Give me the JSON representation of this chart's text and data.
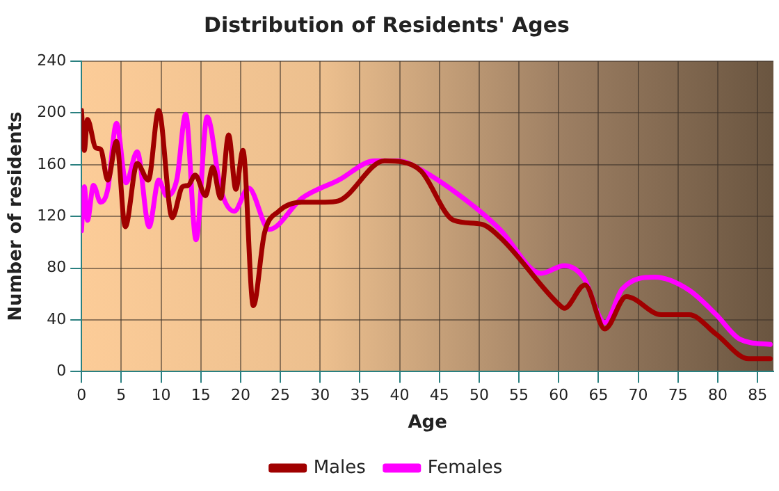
{
  "chart_data": {
    "type": "line",
    "title": "Distribution of Residents' Ages",
    "xlabel": "Age",
    "ylabel": "Number of residents",
    "xlim": [
      0,
      87
    ],
    "xticks": [
      0,
      5,
      10,
      15,
      20,
      25,
      30,
      35,
      40,
      45,
      50,
      55,
      60,
      65,
      70,
      75,
      80,
      85
    ],
    "ylim": [
      0,
      240
    ],
    "yticks": [
      0,
      40,
      80,
      120,
      160,
      200,
      240
    ],
    "grid": true,
    "legend": "bottom",
    "marker": "none",
    "line_style": "solid",
    "series": [
      {
        "name": "Males",
        "color": "#a00000",
        "x": [
          0,
          0.35,
          0.75,
          1.8,
          2.4,
          3.3,
          4.4,
          5.5,
          7,
          8.4,
          9.7,
          11.4,
          12.7,
          13.4,
          14.3,
          15.6,
          16.5,
          17.5,
          18.5,
          19.4,
          20.3,
          21.6,
          23,
          24.8,
          27.7,
          30.6,
          32.3,
          38.1,
          40.4,
          42.7,
          46.8,
          50.3,
          52.6,
          60.2,
          60.7,
          63.3,
          65.8,
          68.5,
          72.9,
          76.4,
          79.8,
          83.9,
          86.6
        ],
        "values": [
          202,
          171,
          195,
          173,
          172,
          148,
          178,
          112,
          161,
          148,
          202,
          119,
          143,
          144,
          152,
          136,
          158,
          134,
          183,
          141,
          171,
          51,
          107,
          124,
          131,
          131,
          132,
          163,
          162,
          155,
          117,
          114,
          104,
          51,
          49,
          67,
          33,
          58,
          44,
          44,
          29,
          10,
          10
        ]
      },
      {
        "name": "Females",
        "color": "#ff00ff",
        "x": [
          0,
          0.35,
          0.75,
          1.5,
          2.4,
          3.3,
          4.4,
          5.6,
          7,
          8.5,
          9.7,
          10.7,
          12,
          13.1,
          14.4,
          15.8,
          17.5,
          19.2,
          21,
          23.6,
          27.7,
          32.3,
          36.9,
          39.8,
          42.7,
          49.7,
          52.6,
          57.8,
          60.7,
          63.1,
          65.8,
          68,
          72.1,
          76.4,
          79.8,
          82.8,
          86.6
        ],
        "values": [
          109,
          143,
          117,
          144,
          131,
          141,
          192,
          146,
          170,
          112,
          148,
          136,
          149,
          199,
          102,
          197,
          141,
          124,
          142,
          110,
          134,
          148,
          163,
          163,
          156,
          126,
          110,
          76,
          82,
          73,
          38,
          64,
          73,
          63,
          44,
          25,
          21
        ]
      }
    ]
  }
}
